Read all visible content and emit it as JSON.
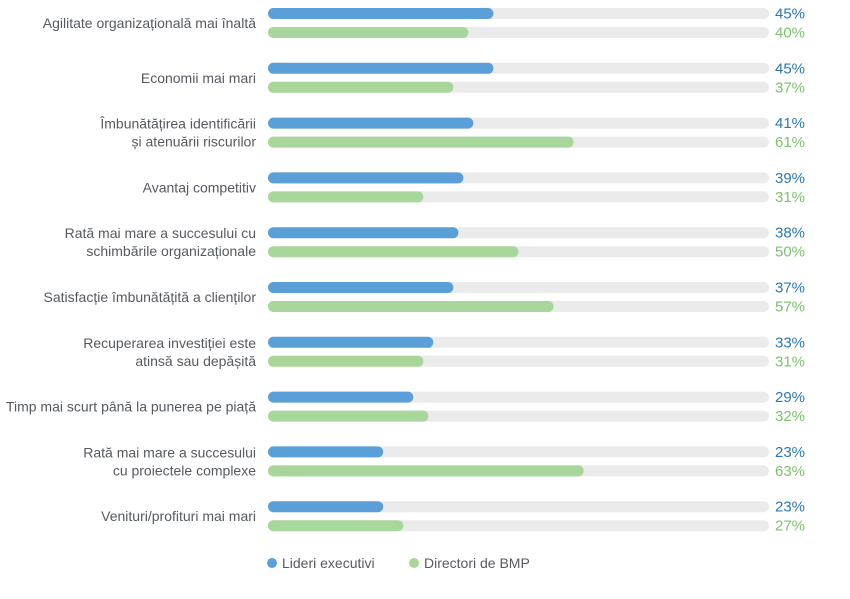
{
  "chart_data": {
    "type": "bar",
    "orientation": "horizontal",
    "unit": "%",
    "xlim": [
      0,
      100
    ],
    "categories": [
      [
        "Agilitate organizațională mai înaltă"
      ],
      [
        "Economii mai mari"
      ],
      [
        "Îmbunătățirea identificării",
        "și atenuării riscurilor"
      ],
      [
        "Avantaj competitiv"
      ],
      [
        "Rată mai mare a succesului cu",
        "schimbările organizaționale"
      ],
      [
        "Satisfacție îmbunătățită a clienților"
      ],
      [
        "Recuperarea investiției este",
        "atinsă sau depășită"
      ],
      [
        "Timp mai scurt până la punerea pe piață"
      ],
      [
        "Rată mai mare a succesului",
        "cu proiectele complexe"
      ],
      [
        "Venituri/profituri mai mari"
      ]
    ],
    "series": [
      {
        "name": "Lideri executivi",
        "color": "#5b9fd8",
        "label_color": "#2a78b8",
        "values": [
          45,
          45,
          41,
          39,
          38,
          37,
          33,
          29,
          23,
          23
        ],
        "labels": [
          "45%",
          "45%",
          "41%",
          "39%",
          "38%",
          "37%",
          "33%",
          "29%",
          "23%",
          "23%"
        ]
      },
      {
        "name": "Directori de BMP",
        "color": "#a9d69a",
        "label_color": "#7cc26b",
        "values": [
          40,
          37,
          61,
          31,
          50,
          57,
          31,
          32,
          63,
          27
        ],
        "labels": [
          "40%",
          "37%",
          "61%",
          "31%",
          "50%",
          "57%",
          "31%",
          "32%",
          "63%",
          "27%"
        ]
      }
    ],
    "track_color": "#ebebeb",
    "legend": {
      "position": "bottom-left",
      "items": [
        "Lideri executivi",
        "Directori de BMP"
      ]
    }
  }
}
